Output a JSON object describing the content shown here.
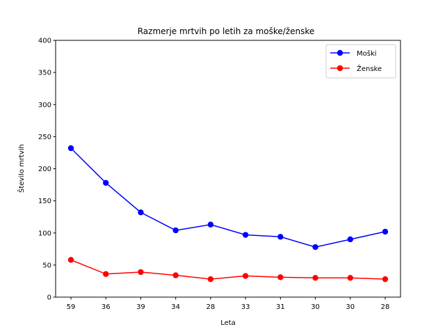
{
  "chart_data": {
    "type": "line",
    "title": "Razmerje mrtvih po letih za moške/ženske",
    "xlabel": "Leta",
    "ylabel": "Število mrtvih",
    "categories": [
      "59",
      "36",
      "39",
      "34",
      "28",
      "33",
      "31",
      "30",
      "30",
      "28"
    ],
    "ylim": [
      0,
      400
    ],
    "yticks": [
      0,
      50,
      100,
      150,
      200,
      250,
      300,
      350,
      400
    ],
    "grid": false,
    "legend_position": "top-right",
    "series": [
      {
        "name": "Moški",
        "color": "#0000ff",
        "marker": "circle",
        "values": [
          232,
          178,
          132,
          104,
          113,
          97,
          94,
          78,
          90,
          102
        ]
      },
      {
        "name": "Ženske",
        "color": "#ff0000",
        "marker": "circle",
        "values": [
          58,
          36,
          39,
          34,
          28,
          33,
          31,
          30,
          30,
          28
        ]
      }
    ]
  }
}
